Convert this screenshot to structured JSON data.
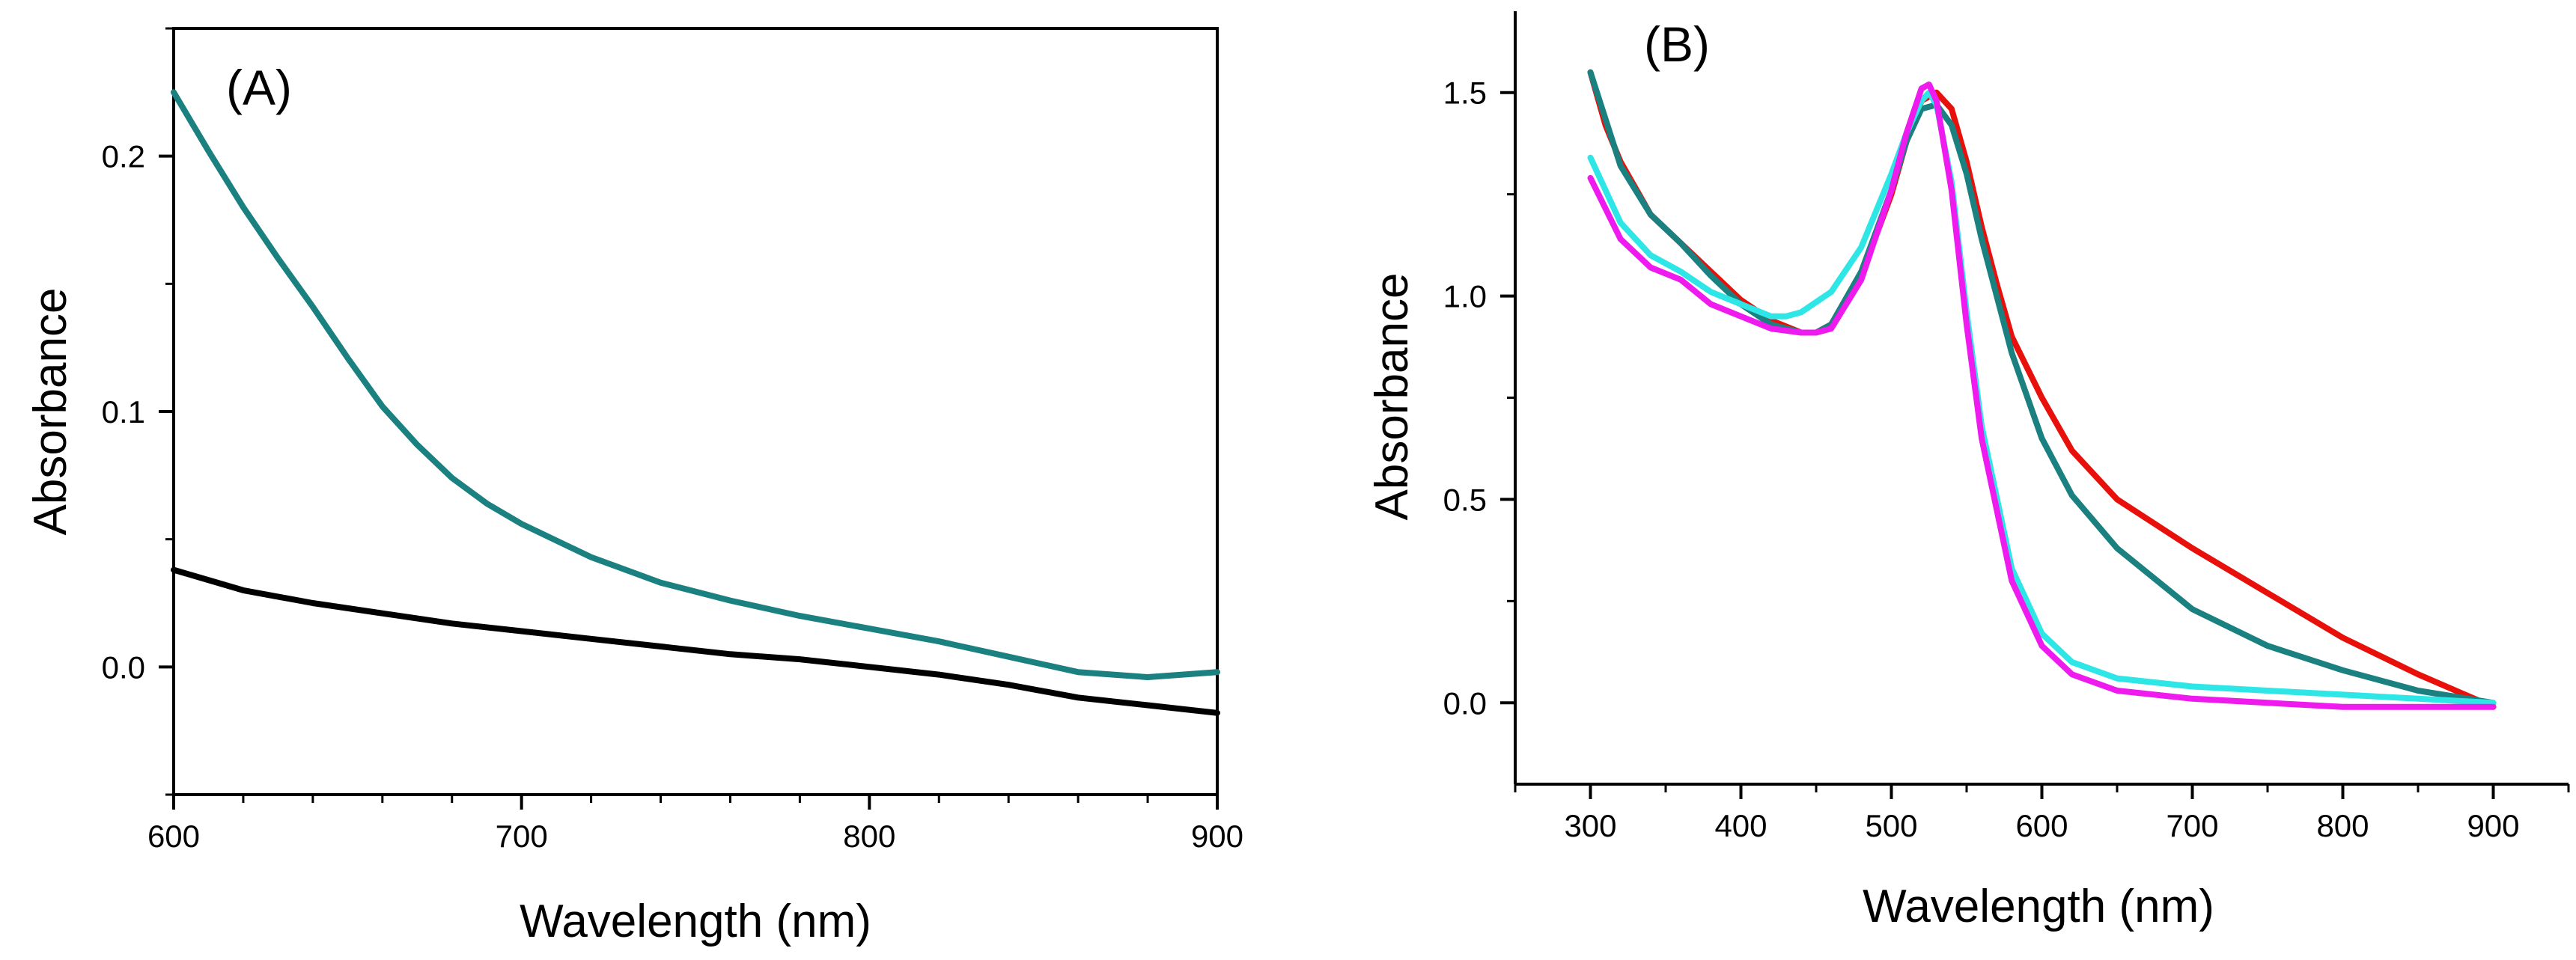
{
  "chart_data": [
    {
      "panel": "(A)",
      "type": "line",
      "title": "",
      "xlabel": "Wavelength (nm)",
      "ylabel": "Absorbance",
      "xlim": [
        600,
        900
      ],
      "ylim": [
        -0.05,
        0.25
      ],
      "xticks": [
        600,
        700,
        800,
        900
      ],
      "xtick_labels": [
        "600",
        "700",
        "800",
        "900"
      ],
      "yticks": [
        0.0,
        0.1,
        0.2
      ],
      "ytick_labels": [
        "0.0",
        "0.1",
        "0.2"
      ],
      "legend": "none",
      "series": [
        {
          "name": "teal",
          "color": "#1a8080",
          "x": [
            600,
            610,
            620,
            630,
            640,
            650,
            660,
            670,
            680,
            690,
            700,
            720,
            740,
            760,
            780,
            800,
            820,
            840,
            860,
            880,
            900
          ],
          "y": [
            0.225,
            0.202,
            0.18,
            0.16,
            0.141,
            0.121,
            0.102,
            0.087,
            0.074,
            0.064,
            0.056,
            0.043,
            0.033,
            0.026,
            0.02,
            0.015,
            0.01,
            0.004,
            -0.002,
            -0.004,
            -0.002
          ]
        },
        {
          "name": "black",
          "color": "#000000",
          "x": [
            600,
            620,
            640,
            660,
            680,
            700,
            720,
            740,
            760,
            780,
            800,
            820,
            840,
            860,
            880,
            900
          ],
          "y": [
            0.038,
            0.03,
            0.025,
            0.021,
            0.017,
            0.014,
            0.011,
            0.008,
            0.005,
            0.003,
            0.0,
            -0.003,
            -0.007,
            -0.012,
            -0.015,
            -0.018
          ]
        }
      ]
    },
    {
      "panel": "(B)",
      "type": "line",
      "title": "",
      "xlabel": "Wavelength (nm)",
      "ylabel": "Absorbance",
      "xlim": [
        250,
        950
      ],
      "ylim": [
        -0.2,
        1.7
      ],
      "xticks": [
        300,
        400,
        500,
        600,
        700,
        800,
        900
      ],
      "xtick_labels": [
        "300",
        "400",
        "500",
        "600",
        "700",
        "800",
        "900"
      ],
      "yticks": [
        0.0,
        0.5,
        1.0,
        1.5
      ],
      "ytick_labels": [
        "0.0",
        "0.5",
        "1.0",
        "1.5"
      ],
      "legend": "none",
      "series": [
        {
          "name": "red",
          "color": "#e8100a",
          "x": [
            300,
            310,
            320,
            340,
            360,
            380,
            400,
            420,
            440,
            450,
            460,
            480,
            500,
            510,
            520,
            530,
            540,
            550,
            560,
            570,
            580,
            600,
            620,
            650,
            700,
            750,
            800,
            850,
            900
          ],
          "y": [
            1.55,
            1.42,
            1.33,
            1.2,
            1.13,
            1.06,
            0.99,
            0.94,
            0.91,
            0.91,
            0.93,
            1.05,
            1.25,
            1.38,
            1.48,
            1.5,
            1.46,
            1.33,
            1.17,
            1.03,
            0.9,
            0.75,
            0.62,
            0.5,
            0.38,
            0.27,
            0.16,
            0.07,
            -0.01
          ]
        },
        {
          "name": "teal",
          "color": "#1a8080",
          "x": [
            300,
            320,
            340,
            360,
            380,
            400,
            420,
            440,
            450,
            460,
            480,
            500,
            510,
            520,
            530,
            540,
            550,
            560,
            580,
            600,
            620,
            650,
            700,
            750,
            800,
            850,
            900
          ],
          "y": [
            1.55,
            1.32,
            1.2,
            1.13,
            1.05,
            0.98,
            0.93,
            0.91,
            0.91,
            0.93,
            1.06,
            1.26,
            1.38,
            1.46,
            1.47,
            1.42,
            1.3,
            1.14,
            0.86,
            0.65,
            0.51,
            0.38,
            0.23,
            0.14,
            0.08,
            0.03,
            0.0
          ]
        },
        {
          "name": "cyan",
          "color": "#2ee6e6",
          "x": [
            300,
            320,
            340,
            360,
            380,
            400,
            420,
            430,
            440,
            460,
            480,
            500,
            510,
            520,
            525,
            530,
            540,
            550,
            560,
            580,
            600,
            620,
            650,
            700,
            750,
            800,
            850,
            900
          ],
          "y": [
            1.34,
            1.18,
            1.1,
            1.06,
            1.01,
            0.98,
            0.95,
            0.95,
            0.96,
            1.01,
            1.12,
            1.3,
            1.4,
            1.48,
            1.5,
            1.47,
            1.28,
            0.96,
            0.68,
            0.33,
            0.17,
            0.1,
            0.06,
            0.04,
            0.03,
            0.02,
            0.01,
            0.0
          ]
        },
        {
          "name": "magenta",
          "color": "#ee1aee",
          "x": [
            300,
            320,
            340,
            360,
            380,
            400,
            420,
            440,
            450,
            460,
            480,
            500,
            510,
            520,
            525,
            530,
            540,
            550,
            560,
            580,
            600,
            620,
            650,
            700,
            750,
            800,
            850,
            900
          ],
          "y": [
            1.29,
            1.14,
            1.07,
            1.04,
            0.98,
            0.95,
            0.92,
            0.91,
            0.91,
            0.92,
            1.04,
            1.26,
            1.4,
            1.51,
            1.52,
            1.48,
            1.26,
            0.93,
            0.65,
            0.3,
            0.14,
            0.07,
            0.03,
            0.01,
            0.0,
            -0.01,
            -0.01,
            -0.01
          ]
        }
      ]
    }
  ]
}
